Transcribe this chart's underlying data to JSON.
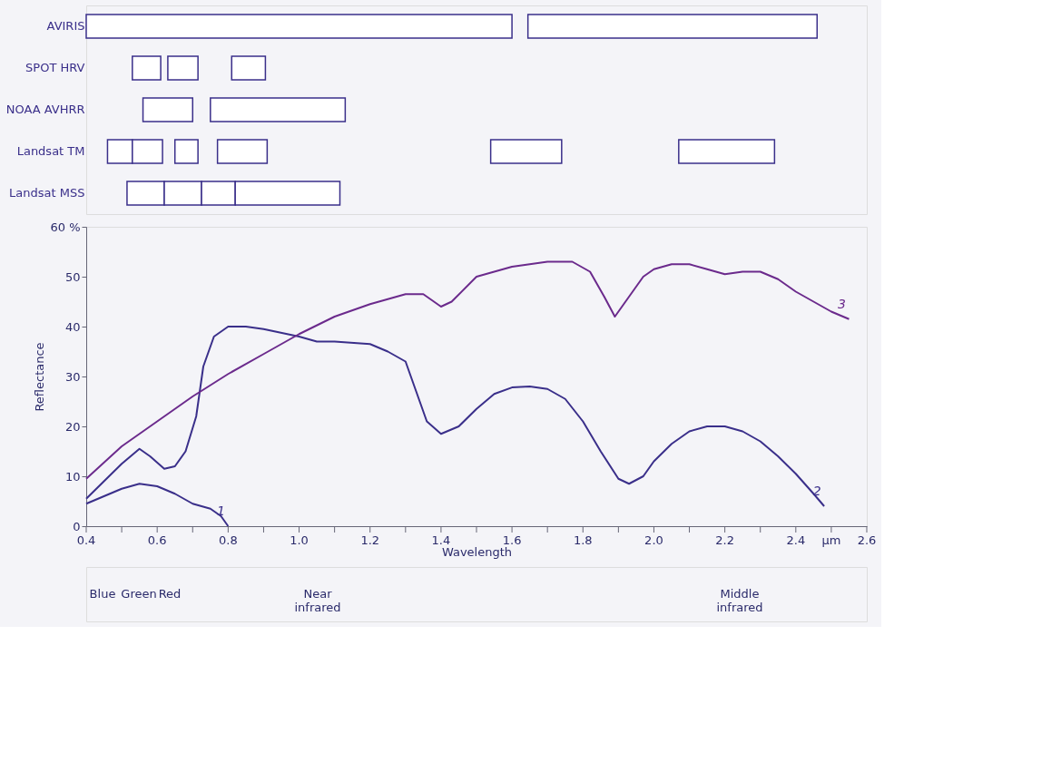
{
  "chart_data": [
    {
      "type": "bar",
      "orientation": "horizontal",
      "tick_labels": "y",
      "grid": false,
      "categories": [
        "AVIRIS",
        "SPOT HRV",
        "NOAA AVHRR",
        "Landsat TM",
        "Landsat MSS"
      ],
      "xlim": [
        0.4,
        2.6
      ],
      "series": [
        {
          "color": "#3a2f8a",
          "base": [
            0.4,
            0.53,
            0.56,
            0.46,
            0.515
          ],
          "values": [
            1.2,
            0.08,
            0.14,
            0.07,
            0.105
          ]
        },
        {
          "color": "#3a2f8a",
          "base": [
            1.645,
            0.63,
            0.75,
            0.53,
            0.62
          ],
          "values": [
            0.815,
            0.085,
            0.38,
            0.085,
            0.105
          ]
        },
        {
          "color": "#3a2f8a",
          "base": [
            null,
            0.81,
            null,
            0.65,
            0.725
          ],
          "values": [
            null,
            0.095,
            null,
            0.065,
            0.095
          ]
        },
        {
          "color": "#3a2f8a",
          "base": [
            null,
            null,
            null,
            0.77,
            0.82
          ],
          "values": [
            null,
            null,
            null,
            0.14,
            0.295
          ]
        },
        {
          "color": "#3a2f8a",
          "base": [
            null,
            null,
            null,
            1.54,
            null
          ],
          "values": [
            null,
            null,
            null,
            0.2,
            null
          ]
        },
        {
          "color": "#3a2f8a",
          "base": [
            null,
            null,
            null,
            2.07,
            null
          ],
          "values": [
            null,
            null,
            null,
            0.27,
            null
          ]
        }
      ]
    },
    {
      "type": "line",
      "xlabel": "Wavelength",
      "ylabel": "Reflectance",
      "grid": false,
      "legend": false,
      "marker": "none",
      "line_style": "solid",
      "xlim": [
        0.4,
        2.6
      ],
      "xticks": [
        {
          "value": 0.4,
          "label": "0.4"
        },
        {
          "value": 0.5,
          "label": null
        },
        {
          "value": 0.6,
          "label": "0.6"
        },
        {
          "value": 0.7,
          "label": null
        },
        {
          "value": 0.8,
          "label": "0.8"
        },
        {
          "value": 0.9,
          "label": null
        },
        {
          "value": 1.0,
          "label": "1.0"
        },
        {
          "value": 1.1,
          "label": null
        },
        {
          "value": 1.2,
          "label": "1.2"
        },
        {
          "value": 1.3,
          "label": null
        },
        {
          "value": 1.4,
          "label": "1.4"
        },
        {
          "value": 1.5,
          "label": null
        },
        {
          "value": 1.6,
          "label": "1.6"
        },
        {
          "value": 1.7,
          "label": null
        },
        {
          "value": 1.8,
          "label": "1.8"
        },
        {
          "value": 1.9,
          "label": null
        },
        {
          "value": 2.0,
          "label": "2.0"
        },
        {
          "value": 2.1,
          "label": null
        },
        {
          "value": 2.2,
          "label": "2.2"
        },
        {
          "value": 2.3,
          "label": null
        },
        {
          "value": 2.4,
          "label": "2.4"
        },
        {
          "value": 2.5,
          "label": "µm"
        },
        {
          "value": 2.6,
          "label": "2.6"
        }
      ],
      "ylim": [
        0,
        60
      ],
      "yticks": [
        0,
        10,
        20,
        30,
        40,
        50,
        {
          "value": 60,
          "label": "60 %"
        }
      ],
      "series": [
        {
          "name": "1",
          "color": "#3a2f8a",
          "x": [
            0.4,
            0.45,
            0.5,
            0.55,
            0.6,
            0.65,
            0.7,
            0.75,
            0.78,
            0.8
          ],
          "values": [
            4.5,
            6,
            7.5,
            8.5,
            8,
            6.5,
            4.5,
            3.5,
            2,
            0
          ]
        },
        {
          "name": "2",
          "color": "#3a2f8a",
          "x": [
            0.4,
            0.45,
            0.5,
            0.55,
            0.58,
            0.62,
            0.65,
            0.68,
            0.71,
            0.73,
            0.76,
            0.8,
            0.85,
            0.9,
            1.0,
            1.05,
            1.1,
            1.2,
            1.25,
            1.3,
            1.33,
            1.36,
            1.4,
            1.45,
            1.5,
            1.55,
            1.6,
            1.65,
            1.7,
            1.75,
            1.8,
            1.85,
            1.9,
            1.93,
            1.97,
            2.0,
            2.05,
            2.1,
            2.15,
            2.2,
            2.25,
            2.3,
            2.35,
            2.4,
            2.45,
            2.48
          ],
          "values": [
            5.5,
            9,
            12.5,
            15.5,
            14,
            11.5,
            12,
            15,
            22,
            32,
            38,
            40,
            40,
            39.5,
            38,
            37,
            37,
            36.5,
            35,
            33,
            27,
            21,
            18.5,
            20,
            23.5,
            26.5,
            27.8,
            28,
            27.5,
            25.5,
            21,
            15,
            9.5,
            8.5,
            10,
            13,
            16.5,
            19,
            20,
            20,
            19,
            17,
            14,
            10.5,
            6.5,
            4
          ]
        },
        {
          "name": "3",
          "color": "#6b2a8c",
          "x": [
            0.4,
            0.5,
            0.6,
            0.7,
            0.8,
            0.9,
            1.0,
            1.1,
            1.2,
            1.3,
            1.35,
            1.4,
            1.43,
            1.5,
            1.6,
            1.7,
            1.77,
            1.82,
            1.86,
            1.89,
            1.92,
            1.97,
            2.0,
            2.05,
            2.1,
            2.15,
            2.2,
            2.25,
            2.3,
            2.35,
            2.4,
            2.5,
            2.55
          ],
          "values": [
            9.5,
            16,
            21,
            26,
            30.5,
            34.5,
            38.5,
            42,
            44.5,
            46.5,
            46.5,
            44,
            45,
            50,
            52,
            53,
            53,
            51,
            46,
            42,
            45,
            50,
            51.5,
            52.5,
            52.5,
            51.5,
            50.5,
            51,
            51,
            49.5,
            47,
            43,
            41.5
          ]
        }
      ],
      "annotations": [
        "Blue",
        "Green",
        "Red",
        "Near infrared",
        "Middle infrared"
      ]
    }
  ]
}
